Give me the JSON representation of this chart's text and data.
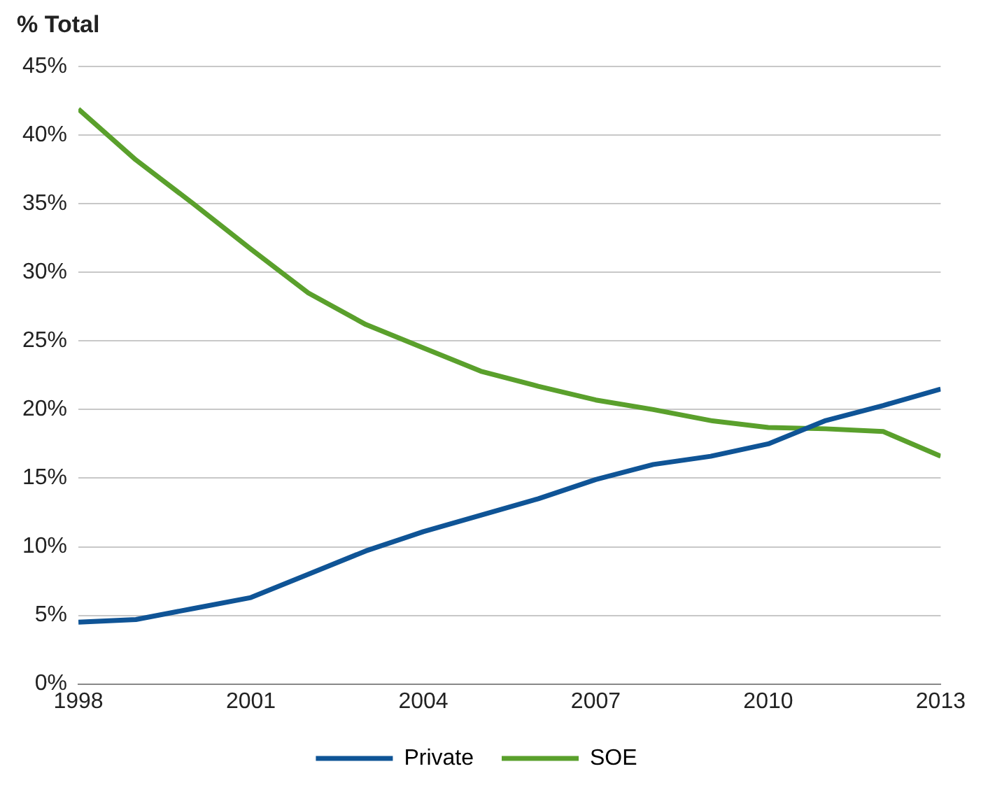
{
  "chart_data": {
    "type": "line",
    "ylabel": "% Total",
    "x": [
      1998,
      1999,
      2000,
      2001,
      2002,
      2003,
      2004,
      2005,
      2006,
      2007,
      2008,
      2009,
      2010,
      2011,
      2012,
      2013
    ],
    "series": [
      {
        "name": "Private",
        "color": "#0f5496",
        "values": [
          4.5,
          4.7,
          5.5,
          6.3,
          8.0,
          9.7,
          11.1,
          12.3,
          13.5,
          14.9,
          16.0,
          16.6,
          17.5,
          19.2,
          20.3,
          21.5
        ]
      },
      {
        "name": "SOE",
        "color": "#5aa02c",
        "values": [
          41.9,
          38.2,
          35.0,
          31.7,
          28.5,
          26.2,
          24.5,
          22.8,
          21.7,
          20.7,
          20.0,
          19.2,
          18.7,
          18.6,
          18.4,
          16.6
        ]
      }
    ],
    "xlim": [
      1998,
      2013
    ],
    "xticks": [
      1998,
      2001,
      2004,
      2007,
      2010,
      2013
    ],
    "ylim": [
      0,
      45
    ],
    "yticks": [
      {
        "value": 0,
        "label": "0%"
      },
      {
        "value": 5,
        "label": "5%"
      },
      {
        "value": 10,
        "label": "10%"
      },
      {
        "value": 15,
        "label": "15%"
      },
      {
        "value": 20,
        "label": "20%"
      },
      {
        "value": 25,
        "label": "25%"
      },
      {
        "value": 30,
        "label": "30%"
      },
      {
        "value": 35,
        "label": "35%"
      },
      {
        "value": 40,
        "label": "40%"
      },
      {
        "value": 45,
        "label": "45%"
      }
    ],
    "grid": "y",
    "legend": "bottom",
    "marker": "none",
    "line_style": "solid"
  }
}
